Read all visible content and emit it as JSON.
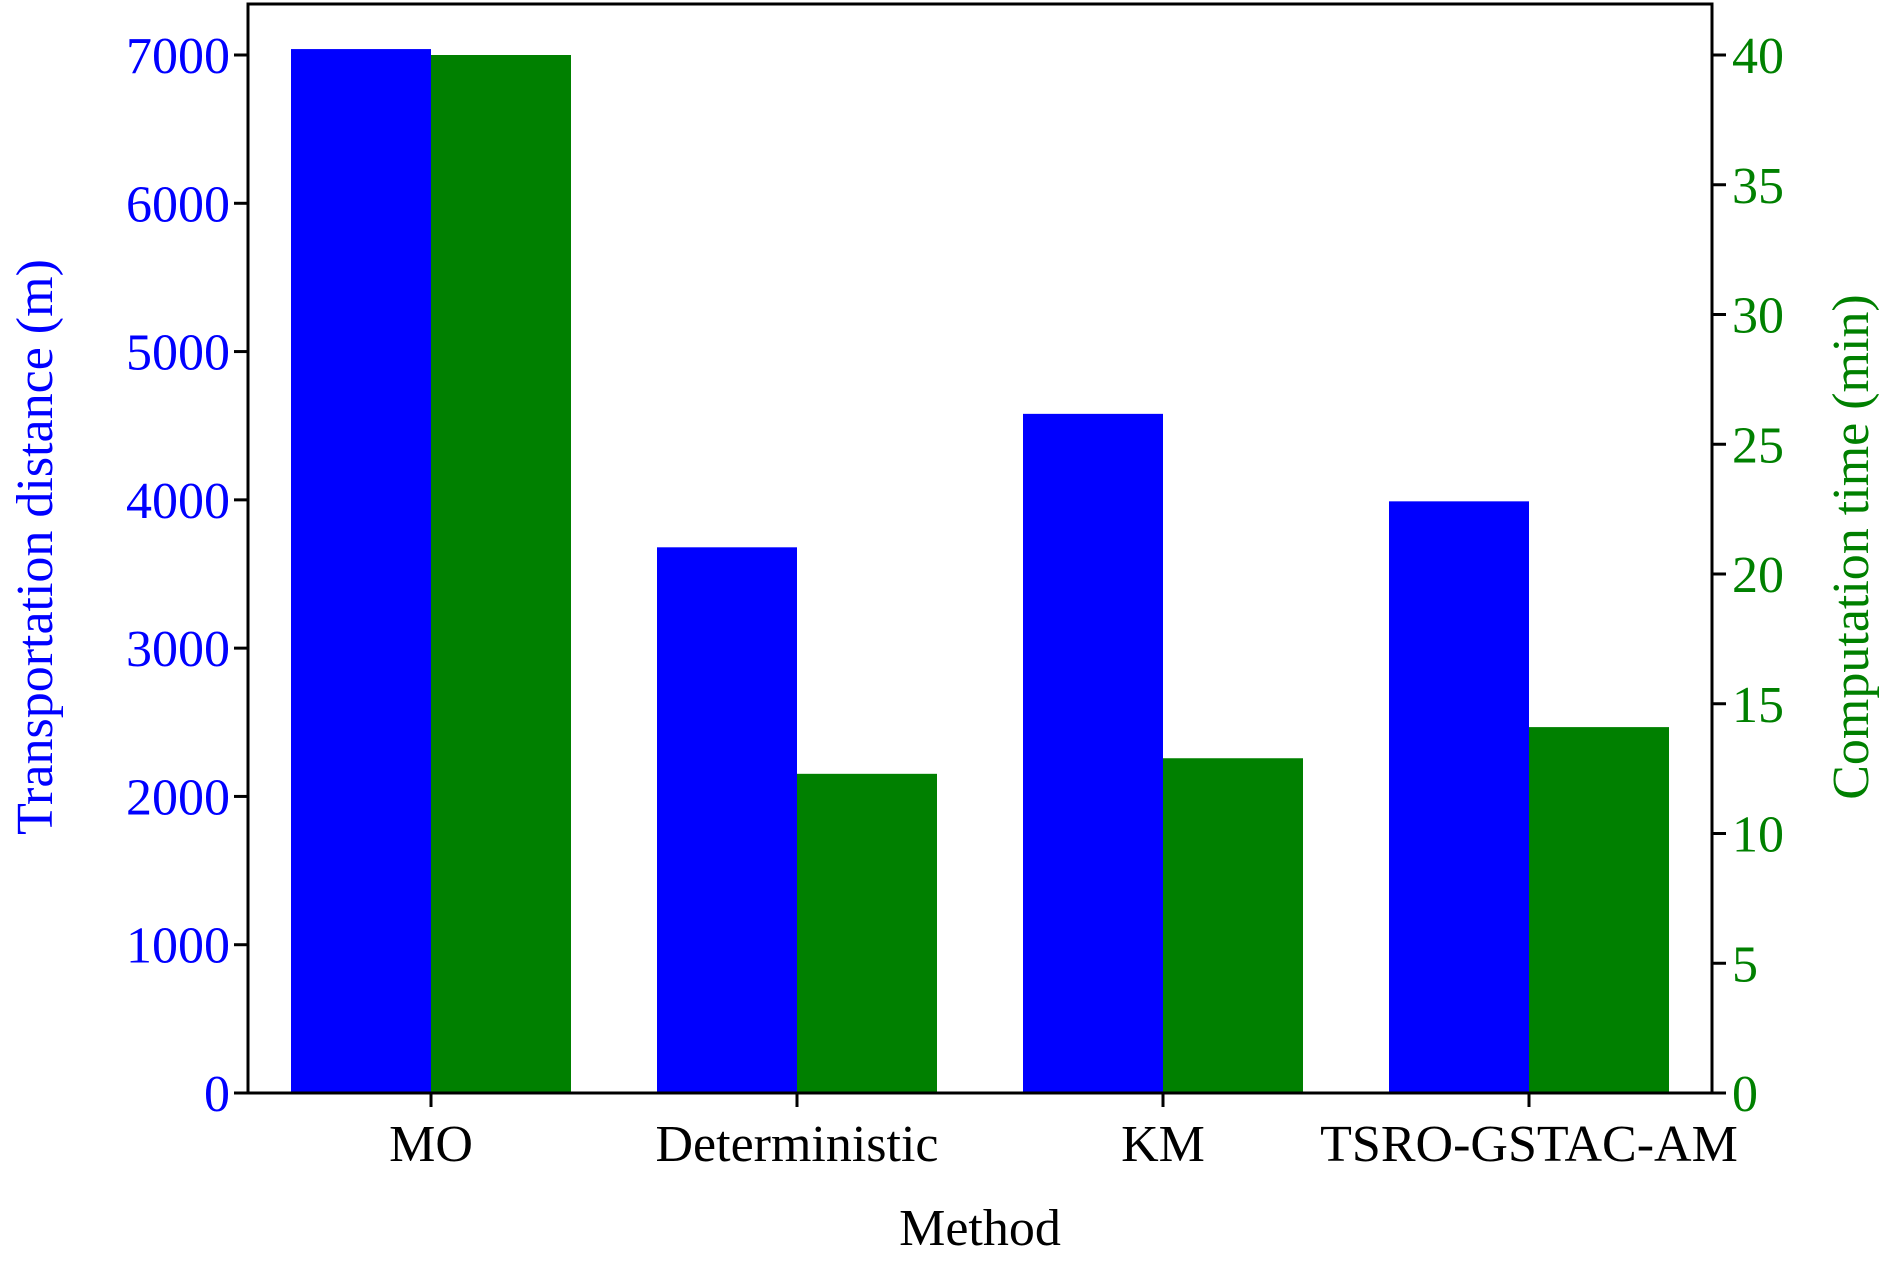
{
  "chart_data": {
    "type": "bar",
    "categories": [
      "MO",
      "Deterministic",
      "KM",
      "TSRO-GSTAC-AM"
    ],
    "xlabel": "Method",
    "series": [
      {
        "name": "Transportation distance",
        "axis": "left",
        "color": "#0000FF",
        "values": [
          7040,
          3680,
          4580,
          3990
        ]
      },
      {
        "name": "Computation time",
        "axis": "right",
        "color": "#008000",
        "values": [
          40,
          12.3,
          12.9,
          14.1
        ]
      }
    ],
    "y_left": {
      "label": "Transportation distance (m)",
      "color": "#0000FF",
      "ylim": [
        0,
        7000
      ],
      "ticks": [
        "0",
        "1000",
        "2000",
        "3000",
        "4000",
        "5000",
        "6000",
        "7000"
      ]
    },
    "y_right": {
      "label": "Computation time (min)",
      "color": "#008000",
      "ylim": [
        0,
        40
      ],
      "ticks": [
        "0",
        "5",
        "10",
        "15",
        "20",
        "25",
        "30",
        "35",
        "40"
      ]
    },
    "grid": false,
    "legend": "none"
  }
}
